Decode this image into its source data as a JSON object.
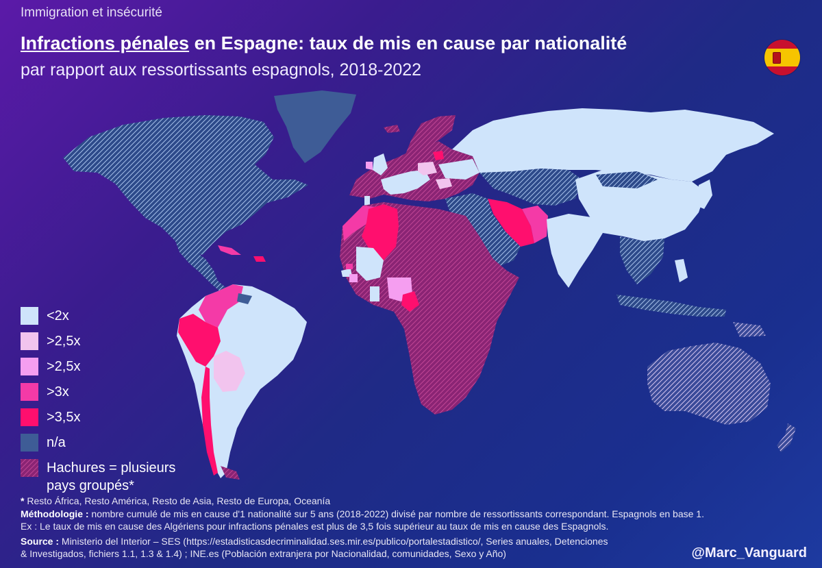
{
  "header": {
    "kicker": "Immigration et insécurité",
    "title_underlined": "Infractions pénales",
    "title_rest": " en Espagne: taux de mis en cause par nationalité",
    "subtitle": "par rapport aux ressortissants espagnols, 2018-2022"
  },
  "colors": {
    "lt2": "#cfe4fb",
    "gt2_5a": "#f2c4ee",
    "gt2_5b": "#f59ef0",
    "gt3": "#f43aa7",
    "gt3_5": "#ff0f6e",
    "na": "#3e5c96",
    "grouped": "#a12d7f",
    "grouped_light": "#a9c3ec"
  },
  "legend": {
    "items": [
      {
        "label": "<2x",
        "color": "#cfe4fb"
      },
      {
        "label": ">2,5x",
        "color": "#f2c4ee"
      },
      {
        "label": ">2,5x",
        "color": "#f59ef0"
      },
      {
        "label": ">3x",
        "color": "#f43aa7"
      },
      {
        "label": ">3,5x",
        "color": "#ff0f6e"
      },
      {
        "label": "n/a",
        "color": "#3e5c96"
      }
    ],
    "hatch_line1": "Hachures = plusieurs",
    "hatch_line2": "pays groupés*"
  },
  "notes": {
    "groups_label": "*",
    "groups_text": " Resto África, Resto América, Resto de Asia, Resto de Europa, Oceanía",
    "method_label": "Méthodologie :",
    "method_text": " nombre cumulé de mis en cause d'1 nationalité sur 5 ans (2018-2022) divisé par nombre de ressortissants correspondant. Espagnols en base 1.",
    "example": "Ex : Le taux de mis en cause des Algériens pour infractions pénales est plus de 3,5 fois supérieur au taux de mis en cause des Espagnols.",
    "source_label": "Source :",
    "source_text": " Ministerio del Interior – SES (https://estadisticasdecriminalidad.ses.mir.es/publico/portalestadistico/, Series anuales, Detenciones",
    "source_text2": "& Investigados, fichiers 1.1, 1.3 & 1.4) ; INE.es (Población extranjera por Nacionalidad, comunidades, Sexo y Año)"
  },
  "handle": "@Marc_Vanguard"
}
